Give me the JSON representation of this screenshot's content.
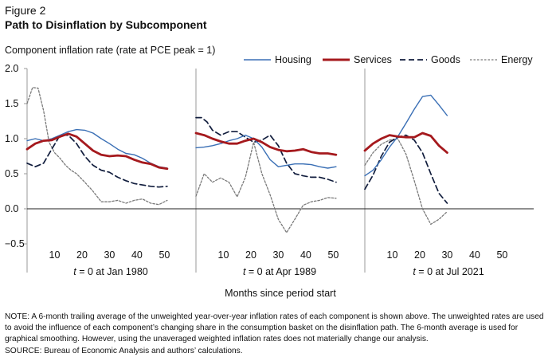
{
  "header": {
    "figure_label": "Figure 2",
    "title": "Path to Disinflation by Subcomponent",
    "y_axis_title": "Component inflation rate (rate at PCE peak = 1)"
  },
  "footer": {
    "note": "NOTE: A 6-month trailing average of the unweighted year-over-year inflation rates of each component is shown above. The unweighted rates are used to avoid the influence of each component’s changing share in the consumption basket on the disinflation path. The 6-month average is used for graphical smoothing. However, using the unaveraged weighted inflation rates does not materially change our analysis.",
    "source": "SOURCE: Bureau of Economic Analysis and authors’ calculations."
  },
  "legend": {
    "housing": "Housing",
    "services": "Services",
    "goods": "Goods",
    "energy": "Energy"
  },
  "colors": {
    "housing": "#3a6fb5",
    "services": "#a5191d",
    "goods": "#111d3d",
    "energy": "#7a7a7a",
    "axis": "#9a9a9a",
    "zero_line": "#222222"
  },
  "chart_data": {
    "type": "line",
    "title": "Path to Disinflation by Subcomponent",
    "ylabel": "Component inflation rate (rate at PCE peak = 1)",
    "xlabel": "Months since period start",
    "ylim": [
      -0.5,
      2.0
    ],
    "yticks": [
      -0.5,
      0.0,
      0.5,
      1.0,
      1.5,
      2.0
    ],
    "ytick_labels": [
      "−0.5",
      "0.0",
      "0.5",
      "1.0",
      "1.5",
      "2.0"
    ],
    "xlim": [
      0,
      58
    ],
    "xticks": [
      10,
      20,
      30,
      40,
      50
    ],
    "panels": [
      {
        "label_prefix": "t",
        "label_suffix": " = 0 at Jan 1980",
        "series": [
          {
            "name": "Housing",
            "key": "housing",
            "x": [
              0,
              3,
              6,
              9,
              12,
              15,
              18,
              21,
              24,
              27,
              30,
              33,
              36,
              39,
              42,
              45,
              48,
              51
            ],
            "values": [
              0.97,
              1.0,
              0.97,
              1.0,
              1.05,
              1.1,
              1.13,
              1.12,
              1.08,
              1.0,
              0.93,
              0.85,
              0.79,
              0.77,
              0.72,
              0.65,
              0.6,
              0.58
            ]
          },
          {
            "name": "Services",
            "key": "services",
            "x": [
              0,
              3,
              6,
              9,
              12,
              15,
              18,
              21,
              24,
              27,
              30,
              33,
              36,
              39,
              42,
              45,
              48,
              51
            ],
            "values": [
              0.85,
              0.93,
              0.97,
              0.98,
              1.03,
              1.07,
              1.03,
              0.93,
              0.83,
              0.77,
              0.75,
              0.76,
              0.75,
              0.7,
              0.66,
              0.64,
              0.59,
              0.57
            ]
          },
          {
            "name": "Goods",
            "key": "goods",
            "x": [
              0,
              3,
              6,
              9,
              12,
              15,
              18,
              21,
              24,
              27,
              30,
              33,
              36,
              39,
              42,
              45,
              48,
              51
            ],
            "values": [
              0.65,
              0.6,
              0.65,
              0.85,
              1.05,
              1.05,
              0.93,
              0.75,
              0.62,
              0.55,
              0.52,
              0.45,
              0.4,
              0.36,
              0.34,
              0.32,
              0.31,
              0.32
            ]
          },
          {
            "name": "Energy",
            "key": "energy",
            "x": [
              0,
              2,
              4,
              6,
              8,
              10,
              12,
              14,
              16,
              18,
              21,
              24,
              27,
              30,
              33,
              36,
              39,
              42,
              45,
              48,
              51
            ],
            "values": [
              1.5,
              1.73,
              1.72,
              1.4,
              0.95,
              0.8,
              0.72,
              0.62,
              0.55,
              0.5,
              0.38,
              0.25,
              0.1,
              0.1,
              0.12,
              0.08,
              0.12,
              0.14,
              0.08,
              0.06,
              0.12
            ]
          }
        ]
      },
      {
        "label_prefix": "t",
        "label_suffix": " = 0 at Apr 1989",
        "series": [
          {
            "name": "Housing",
            "key": "housing",
            "x": [
              0,
              3,
              6,
              9,
              12,
              15,
              18,
              21,
              24,
              27,
              30,
              33,
              36,
              39,
              42,
              45,
              48,
              51
            ],
            "values": [
              0.87,
              0.88,
              0.9,
              0.93,
              0.97,
              1.0,
              1.05,
              1.0,
              0.88,
              0.7,
              0.6,
              0.62,
              0.64,
              0.64,
              0.63,
              0.6,
              0.58,
              0.6
            ]
          },
          {
            "name": "Services",
            "key": "services",
            "x": [
              0,
              3,
              6,
              9,
              12,
              15,
              18,
              21,
              24,
              27,
              30,
              33,
              36,
              39,
              42,
              45,
              48,
              51
            ],
            "values": [
              1.08,
              1.05,
              1.0,
              0.96,
              0.93,
              0.93,
              0.97,
              1.0,
              0.95,
              0.88,
              0.84,
              0.82,
              0.83,
              0.85,
              0.81,
              0.79,
              0.79,
              0.77
            ]
          },
          {
            "name": "Goods",
            "key": "goods",
            "x": [
              0,
              2,
              4,
              6,
              9,
              12,
              15,
              18,
              21,
              24,
              27,
              30,
              33,
              36,
              39,
              42,
              45,
              48,
              51
            ],
            "values": [
              1.3,
              1.3,
              1.24,
              1.12,
              1.05,
              1.1,
              1.1,
              1.02,
              0.95,
              0.98,
              1.05,
              0.9,
              0.65,
              0.5,
              0.47,
              0.45,
              0.45,
              0.42,
              0.38
            ]
          },
          {
            "name": "Energy",
            "key": "energy",
            "x": [
              0,
              3,
              6,
              9,
              12,
              15,
              18,
              21,
              24,
              27,
              30,
              33,
              36,
              39,
              42,
              45,
              48,
              51
            ],
            "values": [
              0.18,
              0.5,
              0.38,
              0.44,
              0.38,
              0.17,
              0.45,
              0.95,
              0.5,
              0.2,
              -0.15,
              -0.34,
              -0.15,
              0.05,
              0.1,
              0.12,
              0.16,
              0.15
            ]
          }
        ]
      },
      {
        "label_prefix": "t",
        "label_suffix": " = 0 at Jul 2021",
        "series": [
          {
            "name": "Housing",
            "key": "housing",
            "x": [
              0,
              3,
              6,
              9,
              12,
              15,
              18,
              21,
              24,
              27,
              30
            ],
            "values": [
              0.47,
              0.55,
              0.7,
              0.88,
              1.03,
              1.22,
              1.42,
              1.6,
              1.62,
              1.48,
              1.33
            ]
          },
          {
            "name": "Services",
            "key": "services",
            "x": [
              0,
              3,
              6,
              9,
              12,
              15,
              18,
              21,
              24,
              27,
              30
            ],
            "values": [
              0.83,
              0.93,
              1.0,
              1.05,
              1.03,
              1.02,
              1.02,
              1.08,
              1.04,
              0.9,
              0.8
            ]
          },
          {
            "name": "Goods",
            "key": "goods",
            "x": [
              0,
              3,
              6,
              9,
              12,
              15,
              18,
              21,
              24,
              27,
              30
            ],
            "values": [
              0.28,
              0.48,
              0.75,
              0.95,
              1.02,
              1.05,
              0.98,
              0.8,
              0.5,
              0.22,
              0.08
            ]
          },
          {
            "name": "Energy",
            "key": "energy",
            "x": [
              0,
              3,
              6,
              9,
              12,
              15,
              18,
              21,
              24,
              27,
              30
            ],
            "values": [
              0.62,
              0.8,
              0.92,
              0.98,
              1.0,
              0.78,
              0.4,
              0.0,
              -0.22,
              -0.15,
              -0.04
            ]
          }
        ]
      }
    ]
  }
}
